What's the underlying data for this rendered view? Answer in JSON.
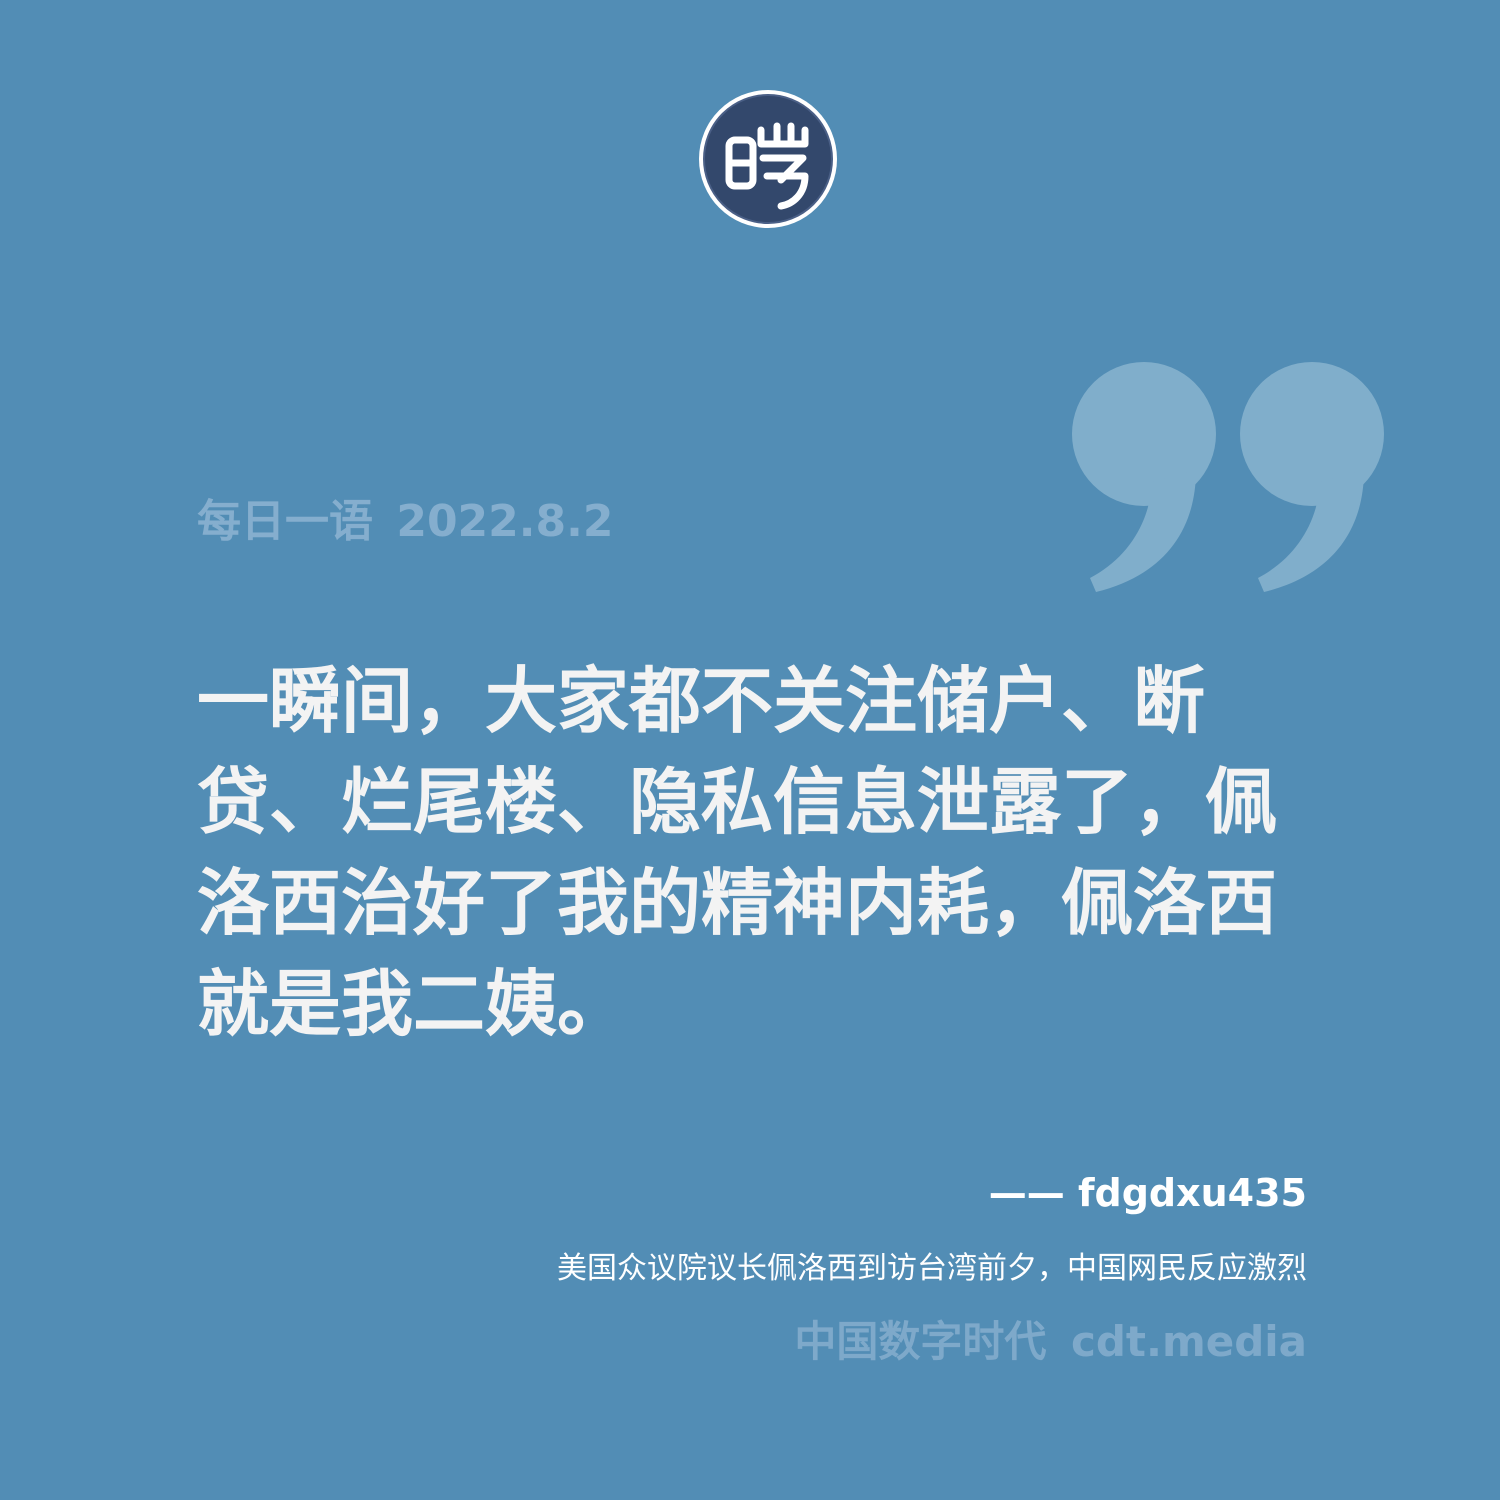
{
  "logo": {
    "glyph": "曙",
    "icon": "cdt-seal-logo"
  },
  "quote_mark": {
    "icon": "closing-quote-icon"
  },
  "header": {
    "label": "每日一语",
    "date": "2022.8.2"
  },
  "quote": {
    "text": "一瞬间，大家都不关注储户、断贷、烂尾楼、隐私信息泄露了，佩洛西治好了我的精神内耗，佩洛西就是我二姨。"
  },
  "attribution": {
    "author": "—— fdgdxu435",
    "source": "美国众议院议长佩洛西到访台湾前夕，中国网民反应激烈"
  },
  "brand": {
    "name": "中国数字时代",
    "url": "cdt.media"
  },
  "colors": {
    "background": "#528db5",
    "quote_text": "#f3f3f3",
    "muted": "#85aece",
    "logo_dark": "#2e4468"
  }
}
